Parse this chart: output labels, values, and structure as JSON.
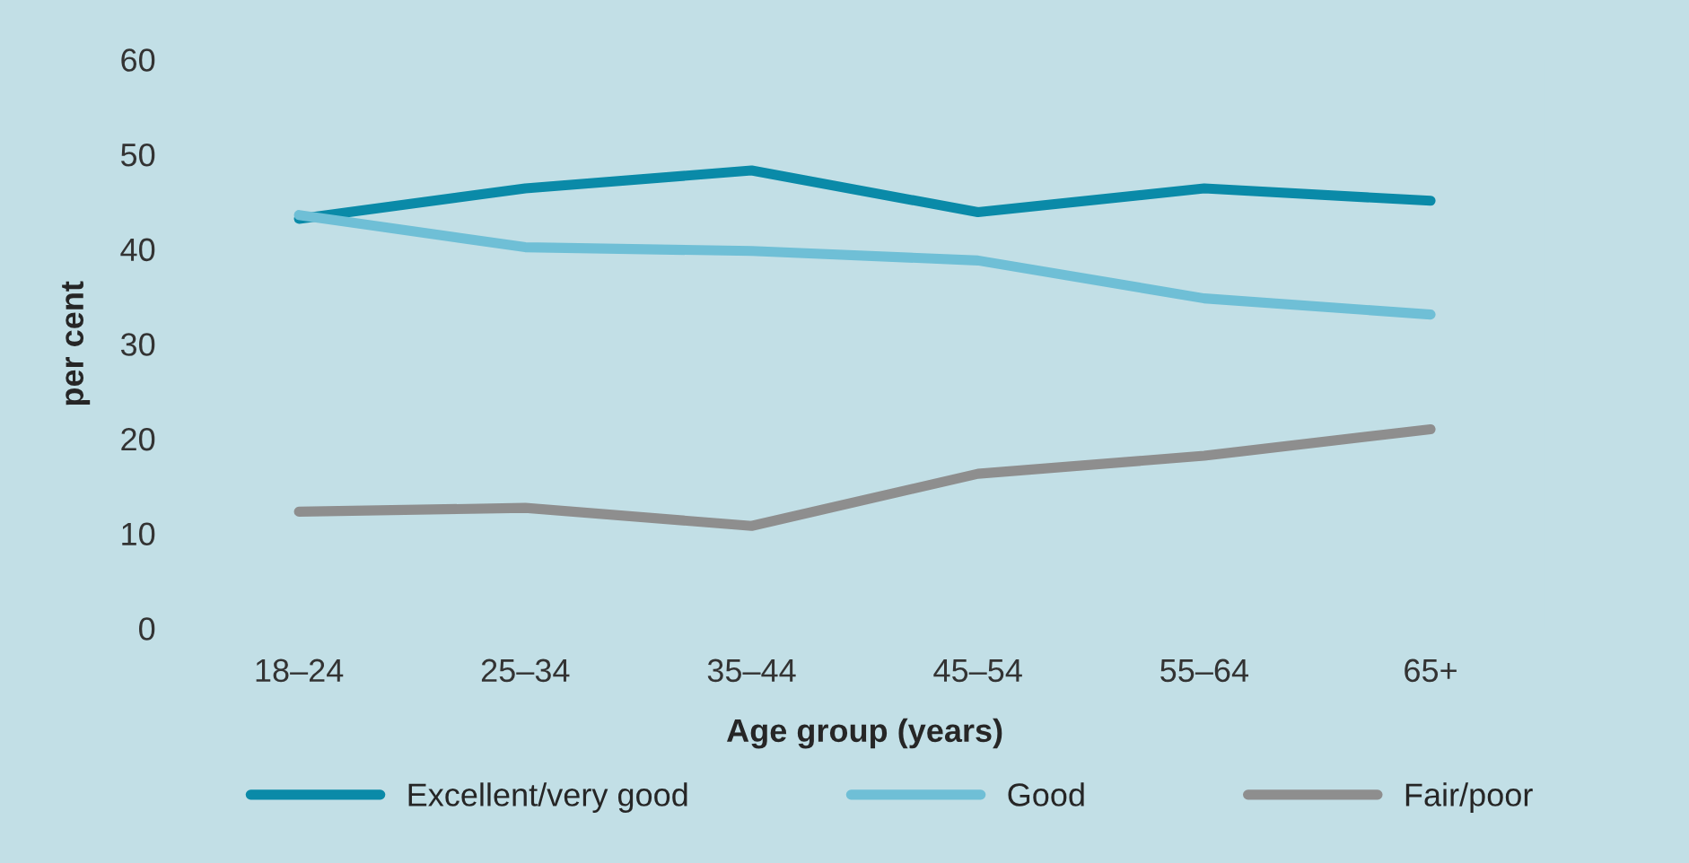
{
  "chart_data": {
    "type": "line",
    "xlabel": "Age group (years)",
    "ylabel": "per cent",
    "categories": [
      "18–24",
      "25–34",
      "35–44",
      "45–54",
      "55–64",
      "65+"
    ],
    "series": [
      {
        "name": "Excellent/very good",
        "color": "#0a8aa8",
        "values": [
          43.2,
          46.4,
          48.3,
          43.9,
          46.4,
          45.1
        ]
      },
      {
        "name": "Good",
        "color": "#6fbfd6",
        "values": [
          43.6,
          40.2,
          39.8,
          38.8,
          34.8,
          33.1
        ]
      },
      {
        "name": "Fair/poor",
        "color": "#8e8e8e",
        "values": [
          12.3,
          12.7,
          10.8,
          16.3,
          18.2,
          21.0
        ]
      }
    ],
    "ylim": [
      0,
      60
    ],
    "yticks": [
      0,
      10,
      20,
      30,
      40,
      50,
      60
    ],
    "grid": false,
    "legend": "bottom",
    "marker": "none",
    "line_style": "solid"
  }
}
